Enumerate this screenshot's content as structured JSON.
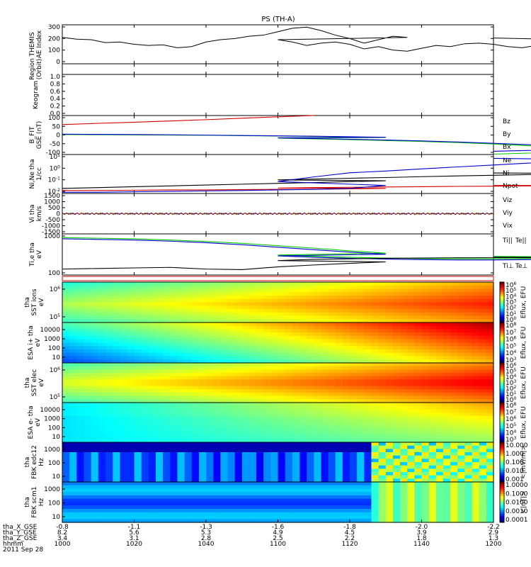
{
  "title": "PS (TH-A)",
  "chart_data": [
    {
      "id": "ae",
      "type": "line",
      "ylabel": [
        "THEMIS",
        "AE Index"
      ],
      "yticks": [
        "300",
        "200",
        "100",
        "0"
      ],
      "x": [
        1000,
        1004,
        1008,
        1012,
        1016,
        1020,
        1024,
        1028,
        1032,
        1036,
        1040,
        1044,
        1048,
        1052,
        1056,
        1060,
        1064,
        1068,
        1072,
        1076,
        1080,
        1084,
        1088,
        1092,
        1096,
        1100,
        1104,
        1108,
        1112,
        1116,
        1120,
        1124,
        1128,
        1132,
        1136,
        1140,
        1144,
        1148,
        1152,
        1156,
        1160,
        1164,
        1168,
        1172,
        1176,
        1180,
        1184,
        1188,
        1192,
        1196,
        1200
      ],
      "values": [
        220,
        205,
        200,
        175,
        180,
        160,
        150,
        155,
        130,
        140,
        180,
        200,
        210,
        230,
        240,
        270,
        300,
        310,
        280,
        240,
        210,
        170,
        200,
        230,
        220,
        200,
        180,
        150,
        170,
        180,
        160,
        120,
        140,
        110,
        100,
        125,
        150,
        140,
        165,
        170,
        160,
        140,
        130,
        150,
        175,
        180,
        160,
        150,
        170,
        190,
        215
      ],
      "ylim": [
        -10,
        330
      ]
    },
    {
      "id": "region",
      "type": "scatter",
      "ylabel": [
        "Region",
        "(Orbit)"
      ],
      "yticks": [],
      "series_color": "#d00000",
      "x_start": 1160,
      "x_end": 1200,
      "value": 0.35,
      "ylim": [
        0,
        1
      ]
    },
    {
      "id": "keogram",
      "type": "line",
      "ylabel": [
        "Keogram"
      ],
      "yticks": [
        "1.0",
        "0.8",
        "0.6",
        "0.4",
        "0.2",
        "0.0"
      ],
      "ylim": [
        0,
        1
      ]
    },
    {
      "id": "bfgm",
      "type": "line",
      "ylabel": [
        "B_FIT",
        "GSE (nT)"
      ],
      "yticks": [
        "100",
        "50",
        "0",
        "-50",
        "-100"
      ],
      "ylim": [
        -110,
        105
      ],
      "x": [
        1000,
        1010,
        1020,
        1030,
        1040,
        1050,
        1060,
        1070,
        1080,
        1090,
        1100,
        1110,
        1120,
        1130,
        1140,
        1150,
        1160,
        1170,
        1180,
        1190,
        1200
      ],
      "series": [
        {
          "name": "Bz",
          "color": "#d00000",
          "values": [
            55,
            62,
            68,
            75,
            82,
            90,
            98,
            106,
            null,
            null,
            null,
            null,
            null,
            null,
            null,
            null,
            null,
            null,
            null,
            null,
            null
          ]
        },
        {
          "name": "By",
          "color": "#00cc00",
          "values": [
            0,
            -1,
            -2,
            -3,
            -4,
            -6,
            -8,
            -10,
            -13,
            -16,
            -20,
            -24,
            -28,
            -33,
            -38,
            -44,
            -52,
            -62,
            -75,
            -90,
            -108
          ]
        },
        {
          "name": "Bx",
          "color": "#0000cc",
          "values": [
            2,
            1,
            0,
            -1,
            -3,
            -5,
            -7,
            -9,
            -12,
            -15,
            -18,
            -22,
            -26,
            -30,
            -35,
            -41,
            -48,
            -56,
            -66,
            -78,
            -92
          ]
        }
      ]
    },
    {
      "id": "density",
      "type": "line",
      "ylabel": [
        "Ni,Ne tha",
        "1/cc"
      ],
      "ylog": true,
      "yticks": [
        "10^1",
        "10^0",
        "10^-1",
        "10^-2"
      ],
      "ylim": [
        0.003,
        30
      ],
      "x": [
        1000,
        1010,
        1020,
        1030,
        1040,
        1050,
        1060,
        1070,
        1080,
        1090,
        1100,
        1110,
        1120,
        1130,
        1140,
        1150,
        1160,
        1170,
        1180,
        1190,
        1200
      ],
      "series": [
        {
          "name": "Ne",
          "color": "#d00000",
          "values": [
            0.006,
            0.006,
            0.0065,
            0.007,
            0.007,
            0.0075,
            0.008,
            0.008,
            0.009,
            0.01,
            0.011,
            0.012,
            0.013,
            0.014,
            0.015,
            0.016,
            0.017,
            0.018,
            0.019,
            0.02,
            0.02
          ]
        },
        {
          "name": "Ni",
          "color": "#000000",
          "values": [
            0.01,
            0.012,
            0.015,
            0.018,
            0.022,
            0.027,
            0.033,
            0.04,
            0.05,
            0.06,
            0.075,
            0.09,
            0.11,
            0.13,
            0.16,
            0.19,
            0.22,
            0.26,
            0.3,
            0.34,
            0.38
          ]
        },
        {
          "name": "Npot",
          "color": "#0000cc",
          "values": [
            0.004,
            0.004,
            0.0045,
            0.005,
            0.0055,
            0.006,
            0.007,
            0.008,
            0.01,
            0.02,
            0.05,
            0.15,
            0.4,
            0.6,
            1.0,
            1.6,
            2.5,
            4,
            6,
            9,
            12
          ]
        }
      ]
    },
    {
      "id": "velocity",
      "type": "line",
      "ylabel": [
        "Vi tha",
        "km/s"
      ],
      "yticks": [
        "1500",
        "1000",
        "500",
        "0",
        "-500",
        "-1000",
        "-1500"
      ],
      "ylim": [
        -1600,
        1600
      ],
      "series": [
        {
          "name": "Viz",
          "color": "#d00000",
          "values": [
            0
          ]
        },
        {
          "name": "Viy",
          "color": "#00cc00",
          "values": [
            0
          ]
        },
        {
          "name": "Vix",
          "color": "#0000cc",
          "values": [
            0
          ]
        }
      ]
    },
    {
      "id": "temperature",
      "type": "line",
      "ylabel": [
        "Ti,e tha",
        "eV"
      ],
      "ylog": true,
      "yticks": [
        "1000",
        "100"
      ],
      "ylim": [
        70,
        1600
      ],
      "x": [
        1000,
        1010,
        1020,
        1030,
        1040,
        1050,
        1060,
        1070,
        1080,
        1090,
        1100,
        1110,
        1120,
        1130,
        1140,
        1150,
        1160,
        1170,
        1180,
        1190,
        1200
      ],
      "series": [
        {
          "name": "Ti||",
          "color": "#00cc00",
          "values": [
            1200,
            1150,
            1100,
            1000,
            900,
            780,
            650,
            540,
            440,
            370,
            320,
            290,
            270,
            255,
            245,
            240,
            240,
            245,
            255,
            270,
            290
          ]
        },
        {
          "name": "Ti⊥",
          "color": "#0000cc",
          "values": [
            1100,
            1050,
            1000,
            920,
            820,
            700,
            580,
            480,
            400,
            340,
            300,
            270,
            250,
            235,
            225,
            220,
            220,
            225,
            235,
            250,
            270
          ]
        },
        {
          "name": "Te",
          "color": "#000000",
          "values": [
            110,
            115,
            120,
            125,
            110,
            105,
            130,
            150,
            170,
            190,
            210,
            230,
            240,
            250,
            255,
            260,
            262,
            262,
            265,
            268,
            270
          ]
        }
      ]
    }
  ],
  "legends": {
    "bfgm": [
      "Bz",
      "By",
      "Bx"
    ],
    "density": [
      "Ne",
      "Ni",
      "Npot"
    ],
    "velocity": [
      "Viz",
      "Viy",
      "Vix"
    ],
    "temperature_top": [
      "Ti||",
      "Te||"
    ],
    "temperature_bottom": [
      "Ti⊥",
      "Te⊥"
    ]
  },
  "spectrograms": [
    {
      "id": "sst_ion",
      "ylabel": [
        "tha",
        "SST ions",
        "eV"
      ],
      "yticks": [
        "10^6",
        "10^5"
      ],
      "cbar_label": "Eflux, EFU",
      "cbar_ticks": [
        "10^6",
        "10^5",
        "10^4",
        "10^3",
        "10^2",
        "10^1",
        "10^0"
      ]
    },
    {
      "id": "esa_ion",
      "ylabel": [
        "ESA i+ tha",
        "eV"
      ],
      "yticks": [
        "10000",
        "1000",
        "100",
        "10"
      ],
      "cbar_label": "Eflux, EFU",
      "cbar_ticks": [
        "10^8",
        "10^7",
        "10^6",
        "10^5",
        "10^4",
        "10^3"
      ]
    },
    {
      "id": "sst_elec",
      "ylabel": [
        "tha",
        "SST elec",
        "eV"
      ],
      "yticks": [
        "10^6",
        "10^5"
      ],
      "cbar_label": "Eflux, EFU",
      "cbar_ticks": [
        "10^6",
        "10^5",
        "10^4",
        "10^3",
        "10^2",
        "10^1",
        "10^0"
      ]
    },
    {
      "id": "esa_elec",
      "ylabel": [
        "ESA e- tha",
        "eV"
      ],
      "yticks": [
        "10000",
        "1000",
        "100",
        "10"
      ],
      "cbar_label": "Eflux, EFU",
      "cbar_ticks": [
        "10^8",
        "10^7",
        "10^6",
        "10^5",
        "10^4",
        "10^3"
      ]
    },
    {
      "id": "fbk_e",
      "ylabel": [
        "tha",
        "FBK edc12",
        "Hz"
      ],
      "yticks": [
        "1000",
        "100",
        "10"
      ],
      "cbar_label": "<|mV/m|>",
      "cbar_ticks": [
        "10.000",
        "1.000",
        "0.100",
        "0.010",
        "0.001"
      ]
    },
    {
      "id": "fbk_b",
      "ylabel": [
        "tha",
        "FBK scm1",
        "Hz"
      ],
      "yticks": [
        "1000",
        "100",
        "10"
      ],
      "cbar_label": "<|nT|>",
      "cbar_ticks": [
        "1.0000",
        "0.1000",
        "0.0100",
        "0.0010",
        "0.0001"
      ]
    }
  ],
  "xaxis": {
    "row_labels": [
      "tha_X_GSE",
      "tha_Y_GSE",
      "tha_Z_GSE",
      "hhmm",
      "2011 Sep 28"
    ],
    "ticks": [
      {
        "x": 1000,
        "rows": [
          "-0.8",
          "8.2",
          "3.4",
          "1000"
        ]
      },
      {
        "x": 1020,
        "rows": [
          "-1.1",
          "5.6",
          "3.1",
          "1020"
        ]
      },
      {
        "x": 1040,
        "rows": [
          "-1.3",
          "5.3",
          "2.8",
          "1040"
        ]
      },
      {
        "x": 1100,
        "rows": [
          "-1.6",
          "4.9",
          "2.5",
          "1100"
        ]
      },
      {
        "x": 1120,
        "rows": [
          "-1.8",
          "4.5",
          "2.2",
          "1120"
        ]
      },
      {
        "x": 1140,
        "rows": [
          "-2.0",
          "3.9",
          "1.8",
          "1140"
        ]
      },
      {
        "x": 1200,
        "rows": [
          "-2.2",
          "2.9",
          "1.3",
          "1200"
        ]
      }
    ]
  }
}
